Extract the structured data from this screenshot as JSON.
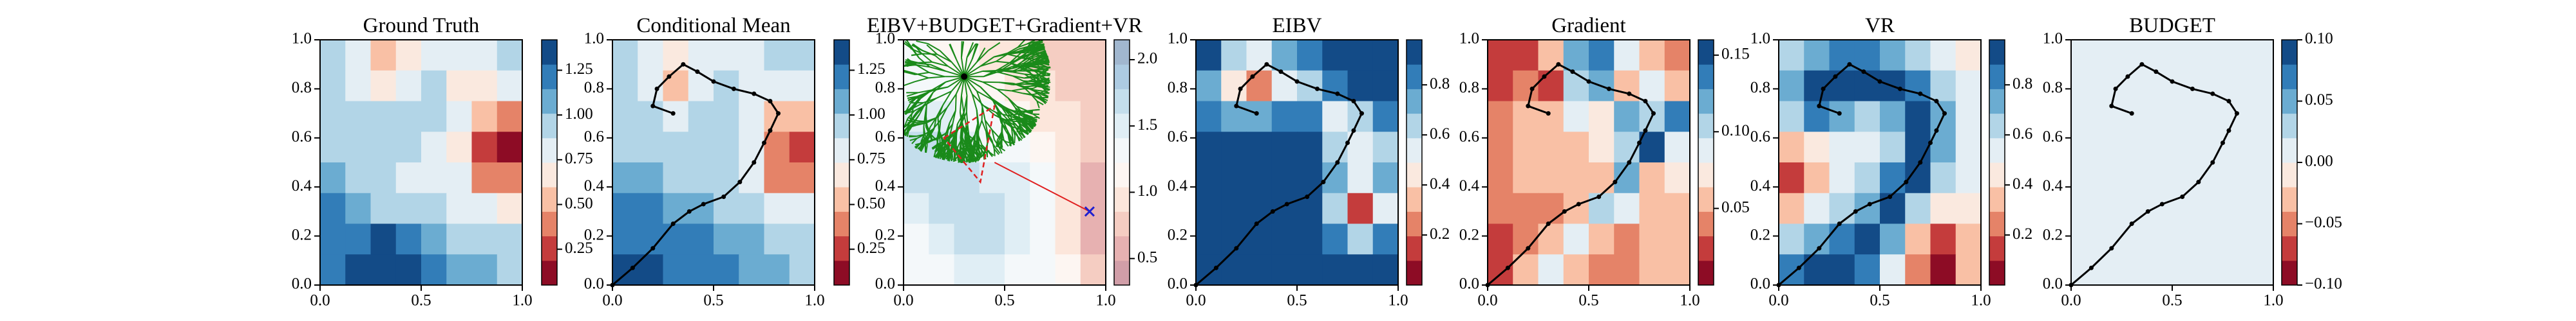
{
  "chart_data": [
    {
      "type": "heatmap",
      "title": "Ground Truth",
      "colormap": "RdBu",
      "xlim": [
        0,
        1
      ],
      "ylim": [
        0,
        1
      ],
      "xticks": [
        {
          "value": 0,
          "label": "0.0"
        },
        0.5,
        {
          "value": 1,
          "label": "1.0"
        }
      ],
      "yticks": [
        {
          "value": 0,
          "label": "0.0"
        },
        0.2,
        0.4,
        0.6,
        0.8,
        {
          "value": 1,
          "label": "1.0"
        }
      ],
      "clim": [
        0.05,
        1.42
      ],
      "cticks": [
        0.25,
        {
          "value": 0.5,
          "label": "0.50"
        },
        0.75,
        {
          "value": 1,
          "label": "1.00"
        },
        1.25
      ],
      "z": [
        [
          0.9,
          0.85,
          0.55,
          0.6,
          0.85,
          0.8,
          0.85,
          0.9
        ],
        [
          0.95,
          0.85,
          0.7,
          0.8,
          0.9,
          0.6,
          0.65,
          0.8
        ],
        [
          1.0,
          0.95,
          0.9,
          0.9,
          0.9,
          0.75,
          0.5,
          0.4
        ],
        [
          1.0,
          1.0,
          0.95,
          0.9,
          0.85,
          0.7,
          0.3,
          0.15
        ],
        [
          1.05,
          1.0,
          0.9,
          0.85,
          0.85,
          0.8,
          0.45,
          0.35
        ],
        [
          1.15,
          1.1,
          1.0,
          0.95,
          0.9,
          0.85,
          0.8,
          0.7
        ],
        [
          1.2,
          1.25,
          1.3,
          1.2,
          1.05,
          1.0,
          0.95,
          0.9
        ],
        [
          1.25,
          1.3,
          1.35,
          1.3,
          1.15,
          1.1,
          1.05,
          1.0
        ]
      ]
    },
    {
      "type": "heatmap",
      "title": "Conditional Mean",
      "colormap": "RdBu",
      "xlim": [
        0,
        1
      ],
      "ylim": [
        0,
        1
      ],
      "xticks": [
        {
          "value": 0,
          "label": "0.0"
        },
        0.5,
        {
          "value": 1,
          "label": "1.0"
        }
      ],
      "yticks": [
        {
          "value": 0,
          "label": "0.0"
        },
        0.2,
        0.4,
        0.6,
        0.8,
        {
          "value": 1,
          "label": "1.0"
        }
      ],
      "clim": [
        0.05,
        1.42
      ],
      "cticks": [
        0.25,
        {
          "value": 0.5,
          "label": "0.50"
        },
        0.75,
        {
          "value": 1,
          "label": "1.00"
        },
        1.25
      ],
      "z": [
        [
          0.9,
          0.85,
          0.7,
          0.75,
          0.85,
          0.85,
          0.9,
          0.9
        ],
        [
          0.9,
          0.8,
          0.55,
          0.75,
          0.9,
          0.8,
          0.75,
          0.85
        ],
        [
          0.95,
          0.9,
          0.85,
          0.9,
          0.95,
          0.8,
          0.5,
          0.55
        ],
        [
          1.0,
          0.95,
          0.95,
          0.95,
          0.95,
          0.75,
          0.35,
          0.2
        ],
        [
          1.1,
          1.05,
          1.0,
          1.0,
          0.95,
          0.85,
          0.45,
          0.4
        ],
        [
          1.2,
          1.15,
          1.1,
          1.05,
          1.0,
          0.95,
          0.8,
          0.75
        ],
        [
          1.25,
          1.25,
          1.15,
          1.2,
          1.1,
          1.05,
          1.0,
          0.95
        ],
        [
          1.3,
          1.3,
          1.2,
          1.25,
          1.15,
          1.1,
          1.05,
          1.0
        ]
      ],
      "path_x": [
        0.0,
        0.1,
        0.2,
        0.3,
        0.38,
        0.45,
        0.55,
        0.63,
        0.7,
        0.75,
        0.78,
        0.82,
        0.78,
        0.7,
        0.6,
        0.5,
        0.42,
        0.35,
        0.28,
        0.22,
        0.2,
        0.3
      ],
      "path_y": [
        0.0,
        0.07,
        0.15,
        0.25,
        0.3,
        0.33,
        0.36,
        0.42,
        0.5,
        0.58,
        0.63,
        0.7,
        0.75,
        0.78,
        0.8,
        0.83,
        0.87,
        0.9,
        0.85,
        0.8,
        0.73,
        0.7
      ]
    },
    {
      "type": "heatmap",
      "title": "EIBV+BUDGET+Gradient+VR",
      "colormap": "RdBu-light",
      "tree": true,
      "xlim": [
        0,
        1
      ],
      "ylim": [
        0,
        1
      ],
      "xticks": [
        {
          "value": 0,
          "label": "0.0"
        },
        0.5,
        {
          "value": 1,
          "label": "1.0"
        }
      ],
      "yticks": [
        {
          "value": 0,
          "label": "0.0"
        },
        0.2,
        0.4,
        0.6,
        0.8,
        {
          "value": 1,
          "label": "1.0"
        }
      ],
      "clim": [
        0.3,
        2.15
      ],
      "cticks": [
        0.5,
        {
          "value": 1,
          "label": "1.0"
        },
        1.5,
        {
          "value": 2,
          "label": "2.0"
        }
      ],
      "z": [
        [
          1.3,
          1.2,
          1.1,
          1.0,
          0.9,
          0.8,
          0.7,
          0.7
        ],
        [
          1.4,
          1.3,
          1.2,
          1.1,
          1.0,
          0.9,
          0.8,
          0.7
        ],
        [
          1.5,
          1.5,
          1.4,
          1.3,
          1.2,
          1.0,
          0.9,
          0.8
        ],
        [
          1.6,
          1.6,
          1.5,
          1.4,
          1.4,
          1.2,
          1.0,
          0.8
        ],
        [
          1.6,
          1.7,
          1.6,
          1.5,
          1.5,
          1.3,
          1.0,
          0.6
        ],
        [
          1.5,
          1.6,
          1.7,
          1.6,
          1.5,
          1.3,
          0.9,
          0.5
        ],
        [
          1.4,
          1.5,
          1.6,
          1.6,
          1.5,
          1.4,
          1.0,
          0.6
        ],
        [
          1.3,
          1.4,
          1.5,
          1.5,
          1.4,
          1.3,
          1.1,
          0.8
        ]
      ]
    },
    {
      "type": "heatmap",
      "title": "EIBV",
      "colormap": "RdBu",
      "xlim": [
        0,
        1
      ],
      "ylim": [
        0,
        1
      ],
      "xticks": [
        {
          "value": 0,
          "label": "0.0"
        },
        0.5,
        {
          "value": 1,
          "label": "1.0"
        }
      ],
      "yticks": [
        {
          "value": 0,
          "label": "0.0"
        },
        0.2,
        0.4,
        0.6,
        0.8,
        {
          "value": 1,
          "label": "1.0"
        }
      ],
      "clim": [
        0.0,
        0.98
      ],
      "cticks": [
        0.2,
        0.4,
        0.6,
        0.8
      ],
      "z": [
        [
          0.9,
          0.6,
          0.5,
          0.7,
          0.8,
          0.9,
          0.95,
          0.95
        ],
        [
          0.7,
          0.4,
          0.2,
          0.5,
          0.6,
          0.8,
          0.9,
          0.95
        ],
        [
          0.8,
          0.7,
          0.7,
          0.8,
          0.8,
          0.5,
          0.6,
          0.8
        ],
        [
          0.95,
          0.95,
          0.95,
          0.95,
          0.9,
          0.6,
          0.5,
          0.6
        ],
        [
          0.95,
          0.95,
          0.95,
          0.95,
          0.95,
          0.7,
          0.5,
          0.7
        ],
        [
          0.95,
          0.95,
          0.95,
          0.95,
          0.95,
          0.6,
          0.1,
          0.5
        ],
        [
          0.95,
          0.95,
          0.95,
          0.95,
          0.95,
          0.8,
          0.6,
          0.8
        ],
        [
          0.95,
          0.95,
          0.95,
          0.95,
          0.95,
          0.95,
          0.9,
          0.95
        ]
      ],
      "path_x": [
        0.0,
        0.1,
        0.2,
        0.3,
        0.38,
        0.45,
        0.55,
        0.63,
        0.7,
        0.75,
        0.78,
        0.82,
        0.78,
        0.7,
        0.6,
        0.5,
        0.42,
        0.35,
        0.28,
        0.22,
        0.2,
        0.3
      ],
      "path_y": [
        0.0,
        0.07,
        0.15,
        0.25,
        0.3,
        0.33,
        0.36,
        0.42,
        0.5,
        0.58,
        0.63,
        0.7,
        0.75,
        0.78,
        0.8,
        0.83,
        0.87,
        0.9,
        0.85,
        0.8,
        0.73,
        0.7
      ]
    },
    {
      "type": "heatmap",
      "title": "Gradient",
      "colormap": "RdBu",
      "xlim": [
        0,
        1
      ],
      "ylim": [
        0,
        1
      ],
      "xticks": [
        {
          "value": 0,
          "label": "0.0"
        },
        0.5,
        {
          "value": 1,
          "label": "1.0"
        }
      ],
      "yticks": [
        {
          "value": 0,
          "label": "0.0"
        },
        0.2,
        0.4,
        0.6,
        0.8,
        {
          "value": 1,
          "label": "1.0"
        }
      ],
      "clim": [
        0.0,
        0.16
      ],
      "cticks": [
        0.05,
        {
          "value": 0.1,
          "label": "0.10"
        },
        0.15
      ],
      "z": [
        [
          0.03,
          0.03,
          0.05,
          0.12,
          0.14,
          0.08,
          0.05,
          0.04
        ],
        [
          0.03,
          0.04,
          0.02,
          0.1,
          0.12,
          0.06,
          0.09,
          0.06
        ],
        [
          0.04,
          0.05,
          0.06,
          0.08,
          0.07,
          0.12,
          0.1,
          0.13
        ],
        [
          0.04,
          0.05,
          0.05,
          0.05,
          0.07,
          0.1,
          0.15,
          0.09
        ],
        [
          0.04,
          0.05,
          0.05,
          0.05,
          0.06,
          0.12,
          0.06,
          0.07
        ],
        [
          0.04,
          0.04,
          0.04,
          0.05,
          0.1,
          0.08,
          0.05,
          0.06
        ],
        [
          0.03,
          0.04,
          0.06,
          0.09,
          0.06,
          0.04,
          0.05,
          0.06
        ],
        [
          0.03,
          0.05,
          0.08,
          0.06,
          0.04,
          0.04,
          0.05,
          0.06
        ]
      ],
      "path_x": [
        0.0,
        0.1,
        0.2,
        0.3,
        0.38,
        0.45,
        0.55,
        0.63,
        0.7,
        0.75,
        0.78,
        0.82,
        0.78,
        0.7,
        0.6,
        0.5,
        0.42,
        0.35,
        0.28,
        0.22,
        0.2,
        0.3
      ],
      "path_y": [
        0.0,
        0.07,
        0.15,
        0.25,
        0.3,
        0.33,
        0.36,
        0.42,
        0.5,
        0.58,
        0.63,
        0.7,
        0.75,
        0.78,
        0.8,
        0.83,
        0.87,
        0.9,
        0.85,
        0.8,
        0.73,
        0.7
      ]
    },
    {
      "type": "heatmap",
      "title": "VR",
      "colormap": "RdBu",
      "xlim": [
        0,
        1
      ],
      "ylim": [
        0,
        1
      ],
      "xticks": [
        {
          "value": 0,
          "label": "0.0"
        },
        0.5,
        {
          "value": 1,
          "label": "1.0"
        }
      ],
      "yticks": [
        {
          "value": 0,
          "label": "0.0"
        },
        0.2,
        0.4,
        0.6,
        0.8,
        {
          "value": 1,
          "label": "1.0"
        }
      ],
      "clim": [
        0.0,
        0.98
      ],
      "cticks": [
        0.2,
        0.4,
        0.6,
        0.8
      ],
      "z": [
        [
          0.6,
          0.7,
          0.8,
          0.8,
          0.7,
          0.6,
          0.5,
          0.4
        ],
        [
          0.7,
          0.95,
          0.95,
          0.9,
          0.9,
          0.8,
          0.6,
          0.5
        ],
        [
          0.6,
          0.8,
          0.7,
          0.6,
          0.7,
          0.9,
          0.7,
          0.5
        ],
        [
          0.3,
          0.4,
          0.5,
          0.5,
          0.6,
          0.9,
          0.7,
          0.5
        ],
        [
          0.1,
          0.3,
          0.5,
          0.6,
          0.8,
          0.9,
          0.6,
          0.5
        ],
        [
          0.3,
          0.5,
          0.6,
          0.7,
          0.9,
          0.6,
          0.4,
          0.4
        ],
        [
          0.6,
          0.7,
          0.8,
          0.9,
          0.7,
          0.3,
          0.1,
          0.3
        ],
        [
          0.8,
          0.9,
          0.9,
          0.8,
          0.5,
          0.2,
          0.05,
          0.3
        ]
      ],
      "path_x": [
        0.0,
        0.1,
        0.2,
        0.3,
        0.38,
        0.45,
        0.55,
        0.63,
        0.7,
        0.75,
        0.78,
        0.82,
        0.78,
        0.7,
        0.6,
        0.5,
        0.42,
        0.35,
        0.28,
        0.22,
        0.2,
        0.3
      ],
      "path_y": [
        0.0,
        0.07,
        0.15,
        0.25,
        0.3,
        0.33,
        0.36,
        0.42,
        0.5,
        0.58,
        0.63,
        0.7,
        0.75,
        0.78,
        0.8,
        0.83,
        0.87,
        0.9,
        0.85,
        0.8,
        0.73,
        0.7
      ]
    },
    {
      "type": "heatmap",
      "title": "BUDGET",
      "colormap": "RdBu",
      "xlim": [
        0,
        1
      ],
      "ylim": [
        0,
        1
      ],
      "xticks": [
        {
          "value": 0,
          "label": "0.0"
        },
        0.5,
        {
          "value": 1,
          "label": "1.0"
        }
      ],
      "yticks": [
        {
          "value": 0,
          "label": "0.0"
        },
        0.2,
        0.4,
        0.6,
        0.8,
        {
          "value": 1,
          "label": "1.0"
        }
      ],
      "clim": [
        -0.1,
        0.1
      ],
      "cticks": [
        {
          "value": -0.1,
          "label": "−0.10"
        },
        {
          "value": -0.05,
          "label": "−0.05"
        },
        {
          "value": 0,
          "label": "0.00"
        },
        0.05,
        {
          "value": 0.1,
          "label": "0.10"
        }
      ],
      "z": [
        [
          0,
          0,
          0,
          0,
          0,
          0,
          0,
          0
        ],
        [
          0,
          0,
          0,
          0,
          0,
          0,
          0,
          0
        ],
        [
          0,
          0,
          0,
          0,
          0,
          0,
          0,
          0
        ],
        [
          0,
          0,
          0,
          0,
          0,
          0,
          0,
          0
        ],
        [
          0,
          0,
          0,
          0,
          0,
          0,
          0,
          0
        ],
        [
          0,
          0,
          0,
          0,
          0,
          0,
          0,
          0
        ],
        [
          0,
          0,
          0,
          0,
          0,
          0,
          0,
          0
        ],
        [
          0,
          0,
          0,
          0,
          0,
          0,
          0,
          0
        ]
      ],
      "path_x": [
        0.0,
        0.1,
        0.2,
        0.3,
        0.38,
        0.45,
        0.55,
        0.63,
        0.7,
        0.75,
        0.78,
        0.82,
        0.78,
        0.7,
        0.6,
        0.5,
        0.42,
        0.35,
        0.28,
        0.22,
        0.2,
        0.3
      ],
      "path_y": [
        0.0,
        0.07,
        0.15,
        0.25,
        0.3,
        0.33,
        0.36,
        0.42,
        0.5,
        0.58,
        0.63,
        0.7,
        0.75,
        0.78,
        0.8,
        0.83,
        0.87,
        0.9,
        0.85,
        0.8,
        0.73,
        0.7
      ]
    }
  ]
}
